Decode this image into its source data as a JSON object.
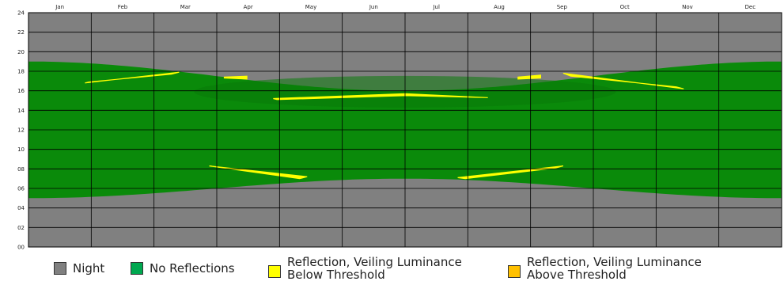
{
  "chart_data": {
    "type": "heatmap",
    "title": "",
    "xlabel": "",
    "ylabel": "",
    "x_ticks": [
      "Jan",
      "Feb",
      "Mar",
      "Apr",
      "May",
      "Jun",
      "Jul",
      "Aug",
      "Sep",
      "Oct",
      "Nov",
      "Dec"
    ],
    "y_ticks": [
      "00",
      "02",
      "04",
      "06",
      "08",
      "10",
      "12",
      "14",
      "16",
      "18",
      "20",
      "22",
      "24"
    ],
    "ylim": [
      0,
      24
    ],
    "grid": true,
    "legend_position": "bottom",
    "sunrise_approx_hours": {
      "Jan": 5.0,
      "Jun": 7.0,
      "Dec": 4.8
    },
    "sunset_approx_hours": {
      "Jan": 19.0,
      "Jun": 16.0,
      "Dec": 19.0
    },
    "reflection_below_threshold_periods": [
      {
        "months": "Feb-Mar",
        "hours": [
          16.8,
          17.8
        ]
      },
      {
        "months": "Apr",
        "hours": [
          17.2,
          17.6
        ]
      },
      {
        "months": "May-Aug",
        "hours": [
          15.2,
          15.6
        ]
      },
      {
        "months": "Sep",
        "hours": [
          17.2,
          17.6
        ]
      },
      {
        "months": "Oct-Nov",
        "hours": [
          16.2,
          17.8
        ]
      },
      {
        "months": "Apr-May",
        "hours": [
          7.1,
          8.3
        ]
      },
      {
        "months": "Aug-Sep",
        "hours": [
          7.1,
          8.3
        ]
      }
    ],
    "colors": {
      "night": "#808080",
      "no_reflections": "#0a8a0a",
      "below_threshold": "#ffff00",
      "above_threshold": "#ffc000"
    }
  },
  "legend": [
    {
      "label": "Night",
      "color": "#808080"
    },
    {
      "label": "No Reflections",
      "color": "#00a850"
    },
    {
      "label": "Reflection, Veiling Luminance\nBelow Threshold",
      "color": "#ffff00"
    },
    {
      "label": "Reflection, Veiling Luminance\nAbove Threshold",
      "color": "#ffc000"
    }
  ]
}
